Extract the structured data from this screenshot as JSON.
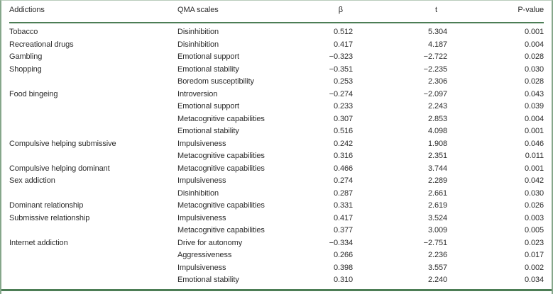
{
  "table": {
    "columns": [
      "Addictions",
      "QMA scales",
      "β",
      "t",
      "P-value"
    ],
    "rows": [
      {
        "addiction": "Tobacco",
        "scale": "Disinhibition",
        "beta": "0.512",
        "t": "5.304",
        "p": "0.001"
      },
      {
        "addiction": "Recreational drugs",
        "scale": "Disinhibition",
        "beta": "0.417",
        "t": "4.187",
        "p": "0.004"
      },
      {
        "addiction": "Gambling",
        "scale": "Emotional support",
        "beta": "−0.323",
        "t": "−2.722",
        "p": "0.028"
      },
      {
        "addiction": "Shopping",
        "scale": "Emotional stability",
        "beta": "−0.351",
        "t": "−2.235",
        "p": "0.030"
      },
      {
        "addiction": "",
        "scale": "Boredom susceptibility",
        "beta": "0.253",
        "t": "2.306",
        "p": "0.028"
      },
      {
        "addiction": "Food bingeing",
        "scale": "Introversion",
        "beta": "−0.274",
        "t": "−2.097",
        "p": "0.043"
      },
      {
        "addiction": "",
        "scale": "Emotional support",
        "beta": "0.233",
        "t": "2.243",
        "p": "0.039"
      },
      {
        "addiction": "",
        "scale": "Metacognitive capabilities",
        "beta": "0.307",
        "t": "2.853",
        "p": "0.004"
      },
      {
        "addiction": "",
        "scale": "Emotional stability",
        "beta": "0.516",
        "t": "4.098",
        "p": "0.001"
      },
      {
        "addiction": "Compulsive helping submissive",
        "scale": "Impulsiveness",
        "beta": "0.242",
        "t": "1.908",
        "p": "0.046"
      },
      {
        "addiction": "",
        "scale": "Metacognitive capabilities",
        "beta": "0.316",
        "t": "2.351",
        "p": "0.011"
      },
      {
        "addiction": "Compulsive helping dominant",
        "scale": "Metacognitive capabilities",
        "beta": "0.466",
        "t": "3.744",
        "p": "0.001"
      },
      {
        "addiction": "Sex addiction",
        "scale": "Impulsiveness",
        "beta": "0.274",
        "t": "2.289",
        "p": "0.042"
      },
      {
        "addiction": "",
        "scale": "Disinhibition",
        "beta": "0.287",
        "t": "2.661",
        "p": "0.030"
      },
      {
        "addiction": "Dominant relationship",
        "scale": "Metacognitive capabilities",
        "beta": "0.331",
        "t": "2.619",
        "p": "0.026"
      },
      {
        "addiction": "Submissive relationship",
        "scale": "Impulsiveness",
        "beta": "0.417",
        "t": "3.524",
        "p": "0.003"
      },
      {
        "addiction": "",
        "scale": "Metacognitive capabilities",
        "beta": "0.377",
        "t": "3.009",
        "p": "0.005"
      },
      {
        "addiction": "Internet addiction",
        "scale": "Drive for autonomy",
        "beta": "−0.334",
        "t": "−2.751",
        "p": "0.023"
      },
      {
        "addiction": "",
        "scale": "Aggressiveness",
        "beta": "0.266",
        "t": "2.236",
        "p": "0.017"
      },
      {
        "addiction": "",
        "scale": "Impulsiveness",
        "beta": "0.398",
        "t": "3.557",
        "p": "0.002"
      },
      {
        "addiction": "",
        "scale": "Emotional stability",
        "beta": "0.310",
        "t": "2.240",
        "p": "0.034"
      }
    ],
    "colors": {
      "frame_green": "#86a78b",
      "frame_green_light": "#b9ccbb",
      "rule_green": "#4c7d55",
      "text": "#2b2b2b"
    }
  }
}
